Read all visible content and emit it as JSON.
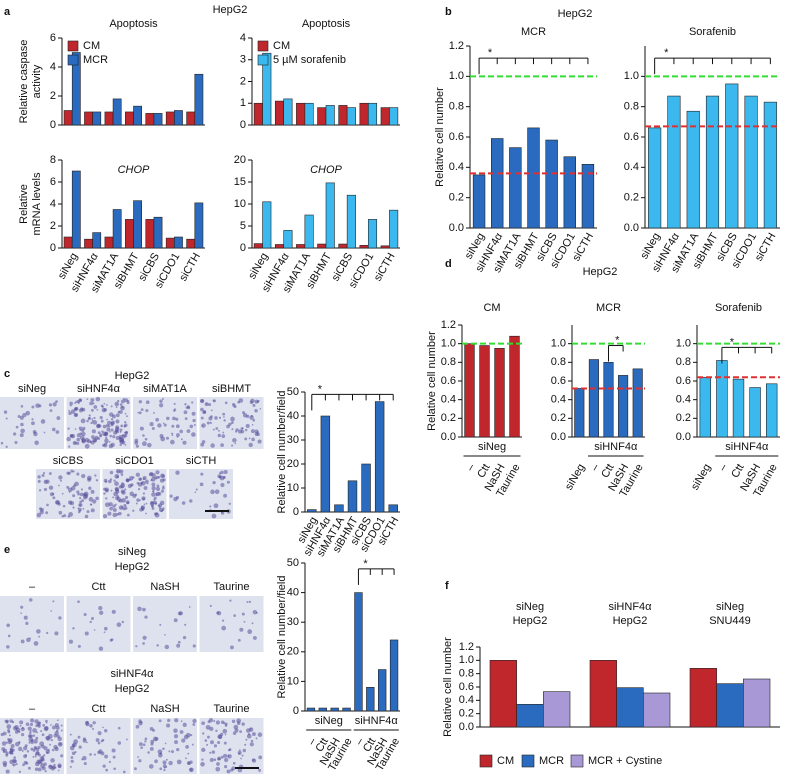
{
  "panel_letters": [
    "a",
    "b",
    "c",
    "d",
    "e",
    "f"
  ],
  "images": {
    "c_title": "HepG2",
    "c_labels": [
      "siNeg",
      "siHNF4α",
      "siMAT1A",
      "siBHMT",
      "siCBS",
      "siCDO1",
      "siCTH"
    ],
    "e_top": [
      "siNeg",
      "HepG2"
    ],
    "e_top_labels": [
      "–",
      "Ctt",
      "NaSH",
      "Taurine"
    ],
    "e_bottom": [
      "siHNF4α",
      "HepG2"
    ],
    "e_bottom_labels": [
      "–",
      "Ctt",
      "NaSH",
      "Taurine"
    ]
  },
  "chart_data": [
    {
      "type": "bar",
      "header": "HepG2",
      "title": "Apoptosis",
      "ylabel": [
        "Relative caspase",
        "activity"
      ],
      "series": [
        {
          "name": "CM",
          "color": "#c0272d",
          "values": [
            1.0,
            0.9,
            0.9,
            0.9,
            0.8,
            0.9,
            0.9
          ]
        },
        {
          "name": "MCR",
          "color": "#2a6bbf",
          "values": [
            5.0,
            0.9,
            1.8,
            1.3,
            0.8,
            1.0,
            3.5
          ]
        }
      ],
      "ylim": [
        0,
        6
      ],
      "yticks": [
        0,
        2,
        4,
        6
      ],
      "legend": "upper left"
    },
    {
      "type": "bar",
      "title": "Apoptosis",
      "series": [
        {
          "name": "CM",
          "color": "#c0272d",
          "values": [
            1.0,
            1.1,
            1.0,
            0.8,
            0.9,
            1.0,
            0.8
          ]
        },
        {
          "name": "5 µM sorafenib",
          "color": "#3bb8ee",
          "values": [
            3.3,
            1.2,
            1.0,
            0.9,
            0.8,
            1.0,
            0.8
          ]
        }
      ],
      "ylim": [
        0,
        4
      ],
      "yticks": [
        0,
        1,
        2,
        3,
        4
      ],
      "legend": "upper left"
    },
    {
      "type": "bar",
      "title": "CHOP",
      "title_italic": true,
      "ylabel": [
        "Relative",
        "mRNA levels"
      ],
      "categories": [
        "siNeg",
        "siHNF4α",
        "siMAT1A",
        "siBHMT",
        "siCBS",
        "siCDO1",
        "siCTH"
      ],
      "category_colors": [
        "#111111",
        "#2e7fc1",
        "#111111",
        "#111111",
        "#2e7fc1",
        "#2e7fc1",
        "#111111"
      ],
      "series": [
        {
          "color": "#c0272d",
          "values": [
            1.0,
            0.8,
            1.0,
            2.6,
            2.6,
            0.9,
            0.8
          ]
        },
        {
          "color": "#2a6bbf",
          "values": [
            7.0,
            1.4,
            3.5,
            4.3,
            2.8,
            1.0,
            4.1
          ]
        }
      ],
      "ylim": [
        0,
        8
      ],
      "yticks": [
        0,
        2,
        4,
        6,
        8
      ]
    },
    {
      "type": "bar",
      "title": "CHOP",
      "title_italic": true,
      "categories": [
        "siNeg",
        "siHNF4α",
        "siMAT1A",
        "siBHMT",
        "siCBS",
        "siCDO1",
        "siCTH"
      ],
      "category_colors": [
        "#111111",
        "#2e7fc1",
        "#111111",
        "#111111",
        "#2e7fc1",
        "#111111",
        "#111111"
      ],
      "series": [
        {
          "color": "#c0272d",
          "values": [
            1.0,
            0.8,
            0.8,
            0.9,
            0.9,
            0.6,
            0.5
          ]
        },
        {
          "color": "#3bb8ee",
          "values": [
            10.5,
            4.0,
            7.5,
            14.8,
            12.0,
            6.5,
            8.6
          ]
        }
      ],
      "ylim": [
        0,
        20
      ],
      "yticks": [
        0,
        5,
        10,
        15,
        20
      ]
    },
    {
      "type": "bar",
      "header": "HepG2",
      "title": "MCR",
      "ylabel": "Relative cell number",
      "categories": [
        "siNeg",
        "siHNF4α",
        "siMAT1A",
        "siBHMT",
        "siCBS",
        "siCDO1",
        "siCTH"
      ],
      "series": [
        {
          "color": "#2a6bbf",
          "values": [
            0.35,
            0.59,
            0.53,
            0.66,
            0.58,
            0.47,
            0.42
          ]
        }
      ],
      "ylim": [
        0,
        1.2
      ],
      "yticks": [
        {
          "value": 0,
          "label": "0.0"
        },
        0.2,
        0.4,
        0.6,
        0.8,
        {
          "value": 1,
          "label": "1.0"
        },
        1.2
      ],
      "ref_lines": [
        {
          "value": 1.0,
          "color": "#33dd33"
        },
        {
          "value": 0.36,
          "color": "#e03030"
        }
      ],
      "annotation": "*"
    },
    {
      "type": "bar",
      "title": "Sorafenib",
      "categories": [
        "siNeg",
        "siHNF4α",
        "siMAT1A",
        "siBHMT",
        "siCBS",
        "siCDO1",
        "siCTH"
      ],
      "series": [
        {
          "color": "#3bb8ee",
          "values": [
            0.66,
            0.87,
            0.77,
            0.87,
            0.95,
            0.87,
            0.83
          ]
        }
      ],
      "ylim": [
        0,
        1.2
      ],
      "yticks": [
        {
          "value": 0,
          "label": "0.0"
        },
        0.2,
        0.4,
        0.6,
        0.8,
        {
          "value": 1,
          "label": "1.0"
        }
      ],
      "ref_lines": [
        {
          "value": 1.0,
          "color": "#33dd33"
        },
        {
          "value": 0.67,
          "color": "#e03030"
        }
      ],
      "annotation": "*"
    },
    {
      "type": "bar",
      "ylabel": "Relative cell number/field",
      "categories": [
        "siNeg",
        "siHNF4α",
        "siMAT1A",
        "siBHMT",
        "siCBS",
        "siCDO1",
        "siCTH"
      ],
      "series": [
        {
          "color": "#2a6bbf",
          "values": [
            1,
            40,
            3,
            13,
            20,
            46,
            3
          ]
        }
      ],
      "ylim": [
        0,
        50
      ],
      "yticks": [
        0,
        10,
        20,
        30,
        40,
        50
      ],
      "annotation": "*"
    },
    {
      "type": "bar",
      "header": "HepG2",
      "title": "CM",
      "ylabel": "Relative cell number",
      "categories": [
        "–",
        "Ctt",
        "NaSH",
        "Taurine"
      ],
      "group_labels": [
        "siNeg"
      ],
      "series": [
        {
          "color": "#c0272d",
          "values": [
            1.0,
            0.98,
            0.95,
            1.08
          ]
        }
      ],
      "ylim": [
        0,
        1.2
      ],
      "yticks": [
        {
          "value": 0,
          "label": "0.0"
        },
        0.2,
        0.4,
        0.6,
        0.8,
        {
          "value": 1,
          "label": "1.0"
        },
        1.2
      ],
      "ref_lines": [
        {
          "value": 1.0,
          "color": "#33dd33"
        }
      ]
    },
    {
      "type": "bar",
      "title": "MCR",
      "categories": [
        "siNeg",
        "–",
        "Ctt",
        "NaSH",
        "Taurine"
      ],
      "group_labels": [
        "siHNF4α"
      ],
      "series": [
        {
          "color": "#2a6bbf",
          "values": [
            0.52,
            0.83,
            0.8,
            0.66,
            0.73
          ]
        }
      ],
      "ylim": [
        0,
        1.2
      ],
      "yticks": [
        {
          "value": 0,
          "label": "0.0"
        },
        0.2,
        0.4,
        0.6,
        0.8,
        {
          "value": 1,
          "label": "1.0"
        }
      ],
      "ref_lines": [
        {
          "value": 1.0,
          "color": "#33dd33"
        },
        {
          "value": 0.52,
          "color": "#e03030"
        }
      ],
      "annotation": "*"
    },
    {
      "type": "bar",
      "title": "Sorafenib",
      "categories": [
        "siNeg",
        "–",
        "Ctt",
        "NaSH",
        "Taurine"
      ],
      "group_labels": [
        "siHNF4α"
      ],
      "series": [
        {
          "color": "#3bb8ee",
          "values": [
            0.64,
            0.82,
            0.62,
            0.53,
            0.57
          ]
        }
      ],
      "ylim": [
        0,
        1.2
      ],
      "yticks": [
        {
          "value": 0,
          "label": "0.0"
        },
        0.2,
        0.4,
        0.6,
        0.8,
        {
          "value": 1,
          "label": "1.0"
        }
      ],
      "ref_lines": [
        {
          "value": 1.0,
          "color": "#33dd33"
        },
        {
          "value": 0.64,
          "color": "#e03030"
        }
      ],
      "annotation": "*"
    },
    {
      "type": "bar",
      "ylabel": "Relative cell number/field",
      "categories": [
        "–",
        "Ctt",
        "NaSH",
        "Taurine",
        "–",
        "Ctt",
        "NaSH",
        "Taurine"
      ],
      "group_labels": [
        "siNeg",
        "siHNF4α"
      ],
      "series": [
        {
          "color": "#2a6bbf",
          "values": [
            1,
            1,
            1,
            1,
            40,
            8,
            14,
            24
          ]
        }
      ],
      "ylim": [
        0,
        50
      ],
      "yticks": [
        0,
        10,
        20,
        30,
        40,
        50
      ],
      "annotation": "*"
    },
    {
      "type": "bar",
      "ylabel": "Relative cell number",
      "categories": [
        [
          "siNeg",
          "HepG2"
        ],
        [
          "siHNF4α",
          "HepG2"
        ],
        [
          "siNeg",
          "SNU449"
        ]
      ],
      "series": [
        {
          "name": "CM",
          "color": "#c0272d",
          "values": [
            1.0,
            1.0,
            0.88
          ]
        },
        {
          "name": "MCR",
          "color": "#2a6bbf",
          "values": [
            0.34,
            0.59,
            0.65
          ]
        },
        {
          "name": "MCR + Cystine",
          "color": "#a899d6",
          "values": [
            0.53,
            0.51,
            0.72
          ]
        }
      ],
      "ylim": [
        0,
        1.2
      ],
      "yticks": [
        {
          "value": 0,
          "label": "0.0"
        },
        0.2,
        0.4,
        0.6,
        0.8,
        {
          "value": 1,
          "label": "1.0"
        },
        1.2
      ],
      "legend": "bottom"
    }
  ]
}
